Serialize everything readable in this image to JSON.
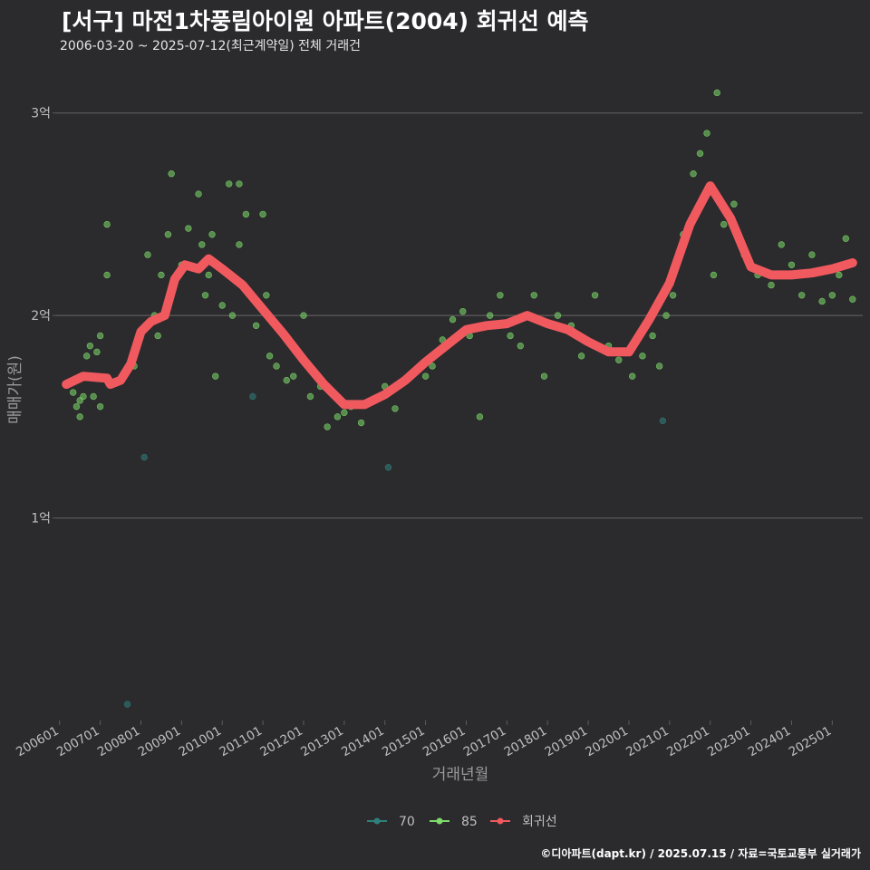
{
  "title": "[서구] 마전1차풍림아이원 아파트(2004) 회귀선 예측",
  "subtitle": "2006-03-20 ~ 2025-07-12(최근계약일) 전체 거래건",
  "footer": "©디아파트(dapt.kr) / 2025.07.15 / 자료=국토교통부 실거래가",
  "colors": {
    "background": "#2b2a2d",
    "grid": "#5c5c5c",
    "axis_text": "#bfbfbf",
    "series_70": "#2f7f7a",
    "series_85": "#7ddc6a",
    "regression": "#f05a5f"
  },
  "chart_data": {
    "type": "scatter",
    "xlabel": "거래년월",
    "ylabel": "매매가(원)",
    "ylim": [
      0,
      32000
    ],
    "xlim": [
      "2005-12-01",
      "2025-10-01"
    ],
    "y_ticks": [
      {
        "value": 10000,
        "label": "1억"
      },
      {
        "value": 20000,
        "label": "2억"
      },
      {
        "value": 30000,
        "label": "3억"
      }
    ],
    "x_ticks": [
      "200601",
      "200701",
      "200801",
      "200901",
      "201001",
      "201101",
      "201201",
      "201301",
      "201401",
      "201501",
      "201601",
      "201701",
      "201801",
      "201901",
      "202001",
      "202101",
      "202201",
      "202301",
      "202401",
      "202501"
    ],
    "legend": {
      "position": "bottom",
      "entries": [
        "70",
        "85",
        "회귀선"
      ]
    },
    "grid": true,
    "series": [
      {
        "name": "70",
        "points": [
          [
            "2008-02",
            13000
          ],
          [
            "2010-10",
            16000
          ],
          [
            "2014-02",
            12500
          ],
          [
            "2020-11",
            14800
          ],
          [
            "2007-09",
            800
          ]
        ]
      },
      {
        "name": "85",
        "points": [
          [
            "2006-05",
            16200
          ],
          [
            "2006-06",
            15500
          ],
          [
            "2006-07",
            15800
          ],
          [
            "2006-07",
            15000
          ],
          [
            "2006-08",
            16000
          ],
          [
            "2006-09",
            18000
          ],
          [
            "2006-10",
            18500
          ],
          [
            "2006-11",
            16000
          ],
          [
            "2006-12",
            18200
          ],
          [
            "2007-01",
            15500
          ],
          [
            "2007-01",
            19000
          ],
          [
            "2007-03",
            22000
          ],
          [
            "2007-03",
            24500
          ],
          [
            "2007-11",
            17500
          ],
          [
            "2008-03",
            23000
          ],
          [
            "2008-05",
            20000
          ],
          [
            "2008-06",
            19000
          ],
          [
            "2008-07",
            22000
          ],
          [
            "2008-09",
            24000
          ],
          [
            "2008-10",
            27000
          ],
          [
            "2009-01",
            22500
          ],
          [
            "2009-03",
            24300
          ],
          [
            "2009-06",
            26000
          ],
          [
            "2009-07",
            23500
          ],
          [
            "2009-08",
            21000
          ],
          [
            "2009-09",
            22000
          ],
          [
            "2009-10",
            24000
          ],
          [
            "2009-11",
            17000
          ],
          [
            "2010-01",
            20500
          ],
          [
            "2010-03",
            26500
          ],
          [
            "2010-04",
            20000
          ],
          [
            "2010-06",
            26500
          ],
          [
            "2010-06",
            23500
          ],
          [
            "2010-08",
            25000
          ],
          [
            "2010-11",
            19500
          ],
          [
            "2011-01",
            25000
          ],
          [
            "2011-02",
            21000
          ],
          [
            "2011-03",
            18000
          ],
          [
            "2011-05",
            17500
          ],
          [
            "2011-08",
            16800
          ],
          [
            "2011-10",
            17000
          ],
          [
            "2012-01",
            20000
          ],
          [
            "2012-03",
            16000
          ],
          [
            "2012-06",
            16500
          ],
          [
            "2012-08",
            14500
          ],
          [
            "2012-11",
            15000
          ],
          [
            "2013-01",
            15200
          ],
          [
            "2013-03",
            15500
          ],
          [
            "2013-06",
            14700
          ],
          [
            "2013-10",
            15800
          ],
          [
            "2014-01",
            16500
          ],
          [
            "2014-04",
            15400
          ],
          [
            "2014-07",
            16800
          ],
          [
            "2015-01",
            17000
          ],
          [
            "2015-03",
            17500
          ],
          [
            "2015-06",
            18800
          ],
          [
            "2015-09",
            19800
          ],
          [
            "2015-12",
            20200
          ],
          [
            "2016-02",
            19000
          ],
          [
            "2016-05",
            15000
          ],
          [
            "2016-08",
            20000
          ],
          [
            "2016-11",
            21000
          ],
          [
            "2017-02",
            19000
          ],
          [
            "2017-05",
            18500
          ],
          [
            "2017-09",
            21000
          ],
          [
            "2017-12",
            17000
          ],
          [
            "2018-04",
            20000
          ],
          [
            "2018-08",
            19500
          ],
          [
            "2018-11",
            18000
          ],
          [
            "2019-03",
            21000
          ],
          [
            "2019-07",
            18500
          ],
          [
            "2019-10",
            17800
          ],
          [
            "2020-02",
            17000
          ],
          [
            "2020-05",
            18000
          ],
          [
            "2020-08",
            19000
          ],
          [
            "2020-10",
            17500
          ],
          [
            "2020-12",
            20000
          ],
          [
            "2021-02",
            21000
          ],
          [
            "2021-05",
            24000
          ],
          [
            "2021-08",
            27000
          ],
          [
            "2021-10",
            28000
          ],
          [
            "2021-12",
            29000
          ],
          [
            "2022-02",
            22000
          ],
          [
            "2022-03",
            31000
          ],
          [
            "2022-05",
            24500
          ],
          [
            "2022-08",
            25500
          ],
          [
            "2022-11",
            23000
          ],
          [
            "2023-03",
            22000
          ],
          [
            "2023-07",
            21500
          ],
          [
            "2023-10",
            23500
          ],
          [
            "2024-01",
            22500
          ],
          [
            "2024-04",
            21000
          ],
          [
            "2024-07",
            23000
          ],
          [
            "2024-10",
            20700
          ],
          [
            "2025-01",
            21000
          ],
          [
            "2025-03",
            22000
          ],
          [
            "2025-05",
            23800
          ],
          [
            "2025-07",
            20800
          ]
        ]
      },
      {
        "name": "회귀선",
        "points": [
          [
            "2006-03",
            16600
          ],
          [
            "2006-08",
            17000
          ],
          [
            "2007-03",
            16900
          ],
          [
            "2007-04",
            16600
          ],
          [
            "2007-07",
            16800
          ],
          [
            "2007-10",
            17600
          ],
          [
            "2008-01",
            19200
          ],
          [
            "2008-04",
            19700
          ],
          [
            "2008-08",
            20000
          ],
          [
            "2008-11",
            21800
          ],
          [
            "2009-02",
            22500
          ],
          [
            "2009-06",
            22300
          ],
          [
            "2009-09",
            22800
          ],
          [
            "2010-01",
            22300
          ],
          [
            "2010-07",
            21500
          ],
          [
            "2011-01",
            20300
          ],
          [
            "2011-07",
            19100
          ],
          [
            "2012-01",
            17800
          ],
          [
            "2012-07",
            16600
          ],
          [
            "2013-01",
            15600
          ],
          [
            "2013-07",
            15600
          ],
          [
            "2014-01",
            16100
          ],
          [
            "2014-07",
            16800
          ],
          [
            "2015-01",
            17700
          ],
          [
            "2015-07",
            18500
          ],
          [
            "2016-01",
            19300
          ],
          [
            "2016-07",
            19500
          ],
          [
            "2017-01",
            19600
          ],
          [
            "2017-07",
            20000
          ],
          [
            "2018-01",
            19600
          ],
          [
            "2018-07",
            19300
          ],
          [
            "2019-01",
            18700
          ],
          [
            "2019-07",
            18200
          ],
          [
            "2020-01",
            18200
          ],
          [
            "2020-07",
            19800
          ],
          [
            "2021-01",
            21600
          ],
          [
            "2021-07",
            24500
          ],
          [
            "2022-01",
            26400
          ],
          [
            "2022-07",
            24800
          ],
          [
            "2023-01",
            22400
          ],
          [
            "2023-07",
            22000
          ],
          [
            "2024-01",
            22000
          ],
          [
            "2024-07",
            22100
          ],
          [
            "2025-01",
            22300
          ],
          [
            "2025-07",
            22600
          ]
        ]
      }
    ]
  }
}
